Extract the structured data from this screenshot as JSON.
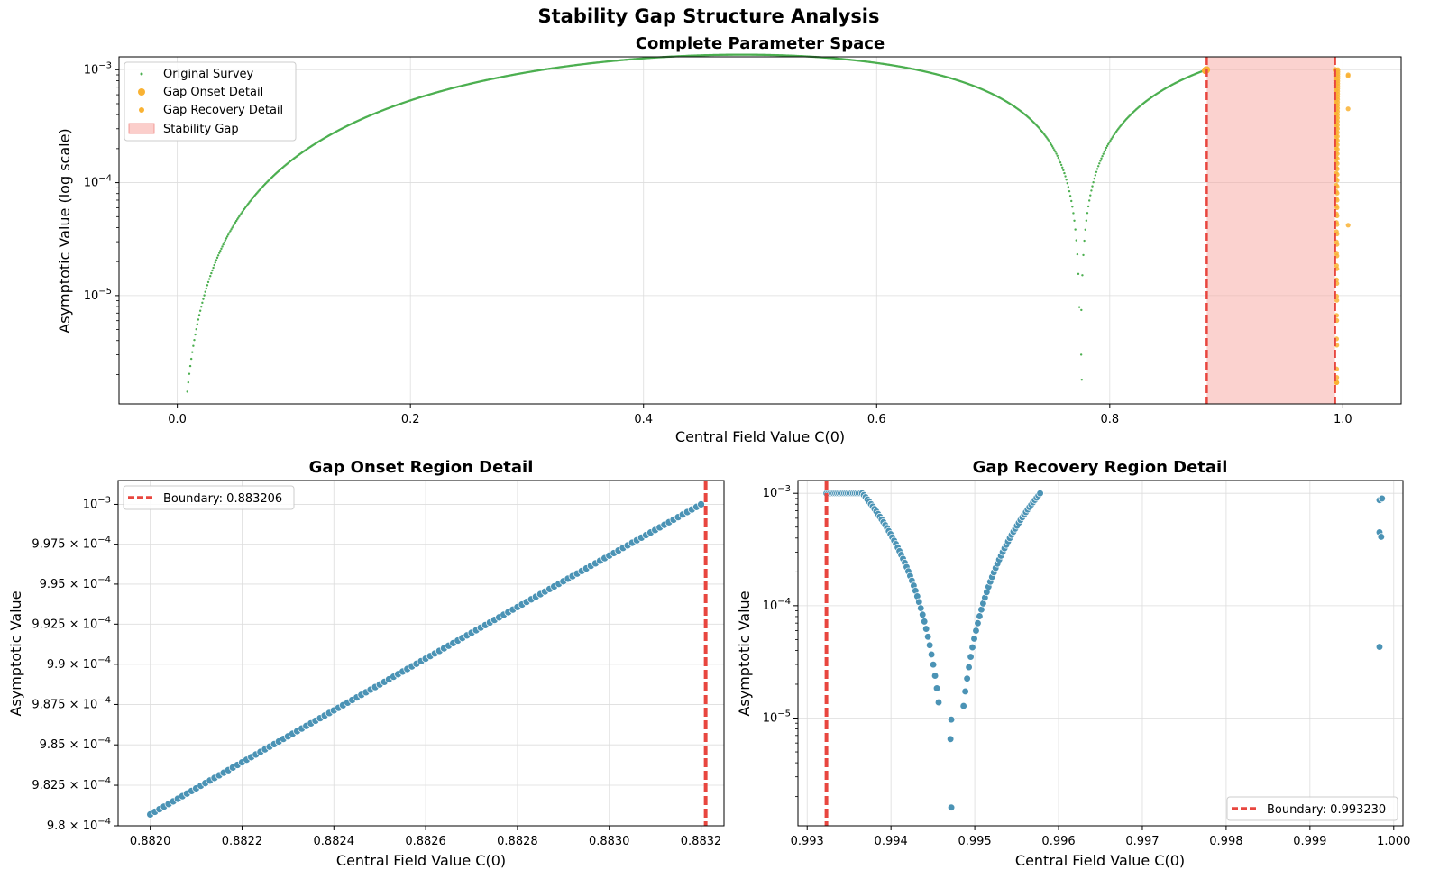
{
  "figure": {
    "suptitle": "Stability Gap Structure Analysis"
  },
  "colors": {
    "survey": "#4caf50",
    "detail_orange": "#f9b233",
    "gap_fill": "#f8a5a0",
    "boundary": "#e8463f",
    "detail_blue": "#4b93b5"
  },
  "chart_data": [
    {
      "id": "top",
      "type": "scatter",
      "title": "Complete Parameter Space",
      "xlabel": "Central Field Value C(0)",
      "ylabel": "Asymptotic Value (log scale)",
      "xlim": [
        -0.05,
        1.05
      ],
      "ylim": [
        1.1e-06,
        0.0013
      ],
      "yscale": "log",
      "grid": true,
      "legend_loc": "upper-left",
      "x_ticks": [
        {
          "v": 0.0,
          "label": "0.0"
        },
        {
          "v": 0.2,
          "label": "0.2"
        },
        {
          "v": 0.4,
          "label": "0.4"
        },
        {
          "v": 0.6,
          "label": "0.6"
        },
        {
          "v": 0.8,
          "label": "0.8"
        },
        {
          "v": 1.0,
          "label": "1.0"
        }
      ],
      "y_ticks": [
        {
          "v": 1e-05,
          "base": "10",
          "exp": "−5"
        },
        {
          "v": 0.0001,
          "base": "10",
          "exp": "−4"
        },
        {
          "v": 0.001,
          "base": "10",
          "exp": "−3"
        }
      ],
      "legend": [
        "Original Survey",
        "Gap Onset Detail",
        "Gap Recovery Detail",
        "Stability Gap"
      ],
      "gap_region": {
        "start": 0.883206,
        "end": 0.99323
      },
      "series": [
        {
          "name": "Original Survey",
          "role": "survey",
          "function": "C^2 * |0.77 - C| * (1 - C)^0.4 scaled",
          "x_range": [
            0.0,
            0.883
          ],
          "extra_points": [
            [
              0.7755,
              3e-06
            ],
            [
              0.776,
              1.8e-06
            ]
          ]
        },
        {
          "name": "Gap Onset Detail",
          "role": "onset",
          "x_range": [
            0.882,
            0.8832
          ],
          "y_range": [
            0.0009807,
            0.001
          ]
        },
        {
          "name": "Gap Recovery Detail",
          "role": "recovery",
          "x_range": [
            0.9932,
            0.9958
          ],
          "dip_at": 0.99472,
          "extra_points": [
            [
              0.99983,
              0.00088
            ],
            [
              0.99985,
              0.00045
            ],
            [
              0.99987,
              4.2e-05
            ]
          ]
        }
      ]
    },
    {
      "id": "onset",
      "type": "scatter",
      "title": "Gap Onset Region Detail",
      "xlabel": "Central Field Value C(0)",
      "ylabel": "Asymptotic Value",
      "xlim": [
        0.88193,
        0.88325
      ],
      "ylim": [
        0.00098,
        0.0010015
      ],
      "yscale": "log",
      "grid": true,
      "legend_loc": "upper-left",
      "x_ticks": [
        {
          "v": 0.882,
          "label": "0.8820"
        },
        {
          "v": 0.8822,
          "label": "0.8822"
        },
        {
          "v": 0.8824,
          "label": "0.8824"
        },
        {
          "v": 0.8826,
          "label": "0.8826"
        },
        {
          "v": 0.8828,
          "label": "0.8828"
        },
        {
          "v": 0.883,
          "label": "0.8830"
        },
        {
          "v": 0.8832,
          "label": "0.8832"
        }
      ],
      "y_ticks": [
        {
          "v": 0.00098,
          "mant": "9.8",
          "exp": "−4"
        },
        {
          "v": 0.0009825,
          "mant": "9.825",
          "exp": "−4"
        },
        {
          "v": 0.000985,
          "mant": "9.85",
          "exp": "−4"
        },
        {
          "v": 0.0009875,
          "mant": "9.875",
          "exp": "−4"
        },
        {
          "v": 0.00099,
          "mant": "9.9",
          "exp": "−4"
        },
        {
          "v": 0.0009925,
          "mant": "9.925",
          "exp": "−4"
        },
        {
          "v": 0.000995,
          "mant": "9.95",
          "exp": "−4"
        },
        {
          "v": 0.0009975,
          "mant": "9.975",
          "exp": "−4"
        },
        {
          "v": 0.001,
          "mant": "",
          "exp": "−3"
        }
      ],
      "boundary": {
        "x": 0.88321,
        "label": "Boundary: 0.883206"
      },
      "series": [
        {
          "name": "",
          "x_range": [
            0.882,
            0.8832
          ],
          "y_range": [
            0.0009807,
            0.001
          ],
          "n": 121
        }
      ]
    },
    {
      "id": "recovery",
      "type": "scatter",
      "title": "Gap Recovery Region Detail",
      "xlabel": "Central Field Value C(0)",
      "ylabel": "Asymptotic Value",
      "xlim": [
        0.99289,
        1.00011
      ],
      "ylim": [
        1.1e-06,
        0.0013
      ],
      "yscale": "log",
      "grid": true,
      "legend_loc": "lower-right",
      "x_ticks": [
        {
          "v": 0.993,
          "label": "0.993"
        },
        {
          "v": 0.994,
          "label": "0.994"
        },
        {
          "v": 0.995,
          "label": "0.995"
        },
        {
          "v": 0.996,
          "label": "0.996"
        },
        {
          "v": 0.997,
          "label": "0.997"
        },
        {
          "v": 0.998,
          "label": "0.998"
        },
        {
          "v": 0.999,
          "label": "0.999"
        },
        {
          "v": 1.0,
          "label": "1.000"
        }
      ],
      "y_ticks": [
        {
          "v": 1e-05,
          "base": "10",
          "exp": "−5"
        },
        {
          "v": 0.0001,
          "base": "10",
          "exp": "−4"
        },
        {
          "v": 0.001,
          "base": "10",
          "exp": "−3"
        }
      ],
      "boundary": {
        "x": 0.99323,
        "label": "Boundary: 0.993230"
      },
      "series": [
        {
          "name": "",
          "x_range": [
            0.99323,
            0.99578
          ],
          "dip_at": 0.99472,
          "points_near_dip": [
            [
              0.99472,
              9.7e-06
            ],
            [
              0.99471,
              6.5e-06
            ],
            [
              0.99472,
              1.6e-06
            ]
          ],
          "extra_points": [
            [
              0.99983,
              0.00087
            ],
            [
              0.99986,
              0.0009
            ],
            [
              0.99983,
              0.00045
            ],
            [
              0.99985,
              0.00041
            ],
            [
              0.99983,
              4.3e-05
            ]
          ]
        }
      ]
    }
  ]
}
